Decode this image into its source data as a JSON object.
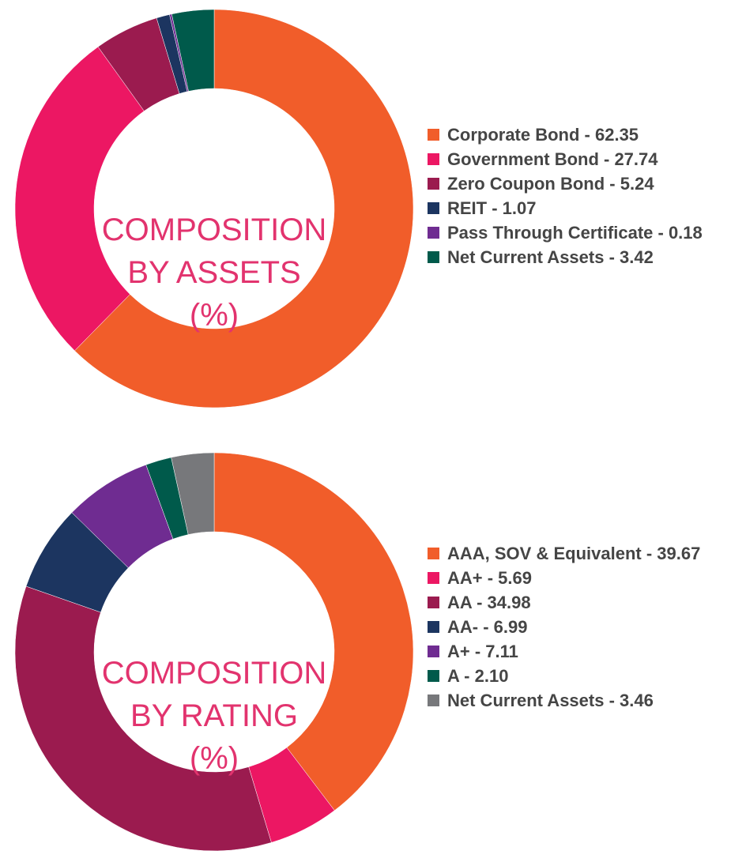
{
  "chart_data": [
    {
      "type": "pie",
      "title": "COMPOSITION BY ASSETS (%)",
      "title_lines": [
        "COMPOSITION",
        "BY ASSETS",
        "(%)"
      ],
      "categories": [
        "Corporate Bond",
        "Government Bond",
        "Zero Coupon Bond",
        "REIT",
        "Pass Through Certificate",
        "Net Current Assets"
      ],
      "values": [
        62.35,
        27.74,
        5.24,
        1.07,
        0.18,
        3.42
      ],
      "legend_labels": [
        "Corporate Bond - 62.35",
        "Government Bond - 27.74",
        "Zero Coupon Bond - 5.24",
        "REIT - 1.07",
        "Pass Through Certificate - 0.18",
        "Net Current Assets - 3.42"
      ],
      "colors": [
        "#F15D2A",
        "#EC1763",
        "#9B1B4F",
        "#1C3560",
        "#6F2C91",
        "#005A4B"
      ],
      "legend_position": "right",
      "donut": true
    },
    {
      "type": "pie",
      "title": "COMPOSITION BY RATING (%)",
      "title_lines": [
        "COMPOSITION",
        "BY RATING",
        "(%)"
      ],
      "categories": [
        "AAA, SOV & Equivalent",
        "AA+",
        "AA",
        "AA-",
        "A+",
        "A",
        "Net Current Assets"
      ],
      "values": [
        39.67,
        5.69,
        34.98,
        6.99,
        7.11,
        2.1,
        3.46
      ],
      "legend_labels": [
        "AAA, SOV & Equivalent - 39.67",
        "AA+ - 5.69",
        "AA - 34.98",
        "AA- - 6.99",
        "A+ - 7.11",
        "A - 2.10",
        "Net Current Assets - 3.46"
      ],
      "colors": [
        "#F15D2A",
        "#EC1763",
        "#9B1B4F",
        "#1C3560",
        "#6F2C91",
        "#005A4B",
        "#77787B"
      ],
      "legend_position": "right",
      "donut": true
    }
  ]
}
